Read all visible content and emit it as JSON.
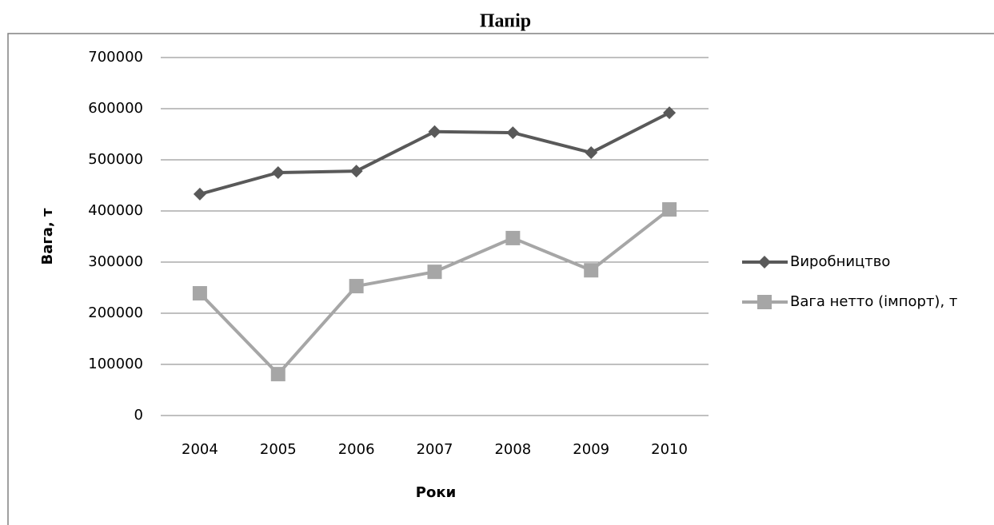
{
  "chart_data": {
    "type": "line",
    "title": "Папір",
    "x_label": "Роки",
    "y_label": "Вага, т",
    "categories": [
      "2004",
      "2005",
      "2006",
      "2007",
      "2008",
      "2009",
      "2010"
    ],
    "series": [
      {
        "name": "Виробництво",
        "color": "#595959",
        "marker": "diamond",
        "values": [
          433000,
          475000,
          478000,
          555000,
          553000,
          514000,
          592000
        ]
      },
      {
        "name": "Вага нетто (імпорт), т",
        "color": "#a6a6a6",
        "marker": "square",
        "values": [
          239000,
          81000,
          253000,
          281000,
          347000,
          284000,
          403000
        ]
      }
    ],
    "ylim": [
      0,
      700000
    ],
    "yticks": [
      0,
      100000,
      200000,
      300000,
      400000,
      500000,
      600000,
      700000
    ],
    "grid": true,
    "legend": "right"
  }
}
